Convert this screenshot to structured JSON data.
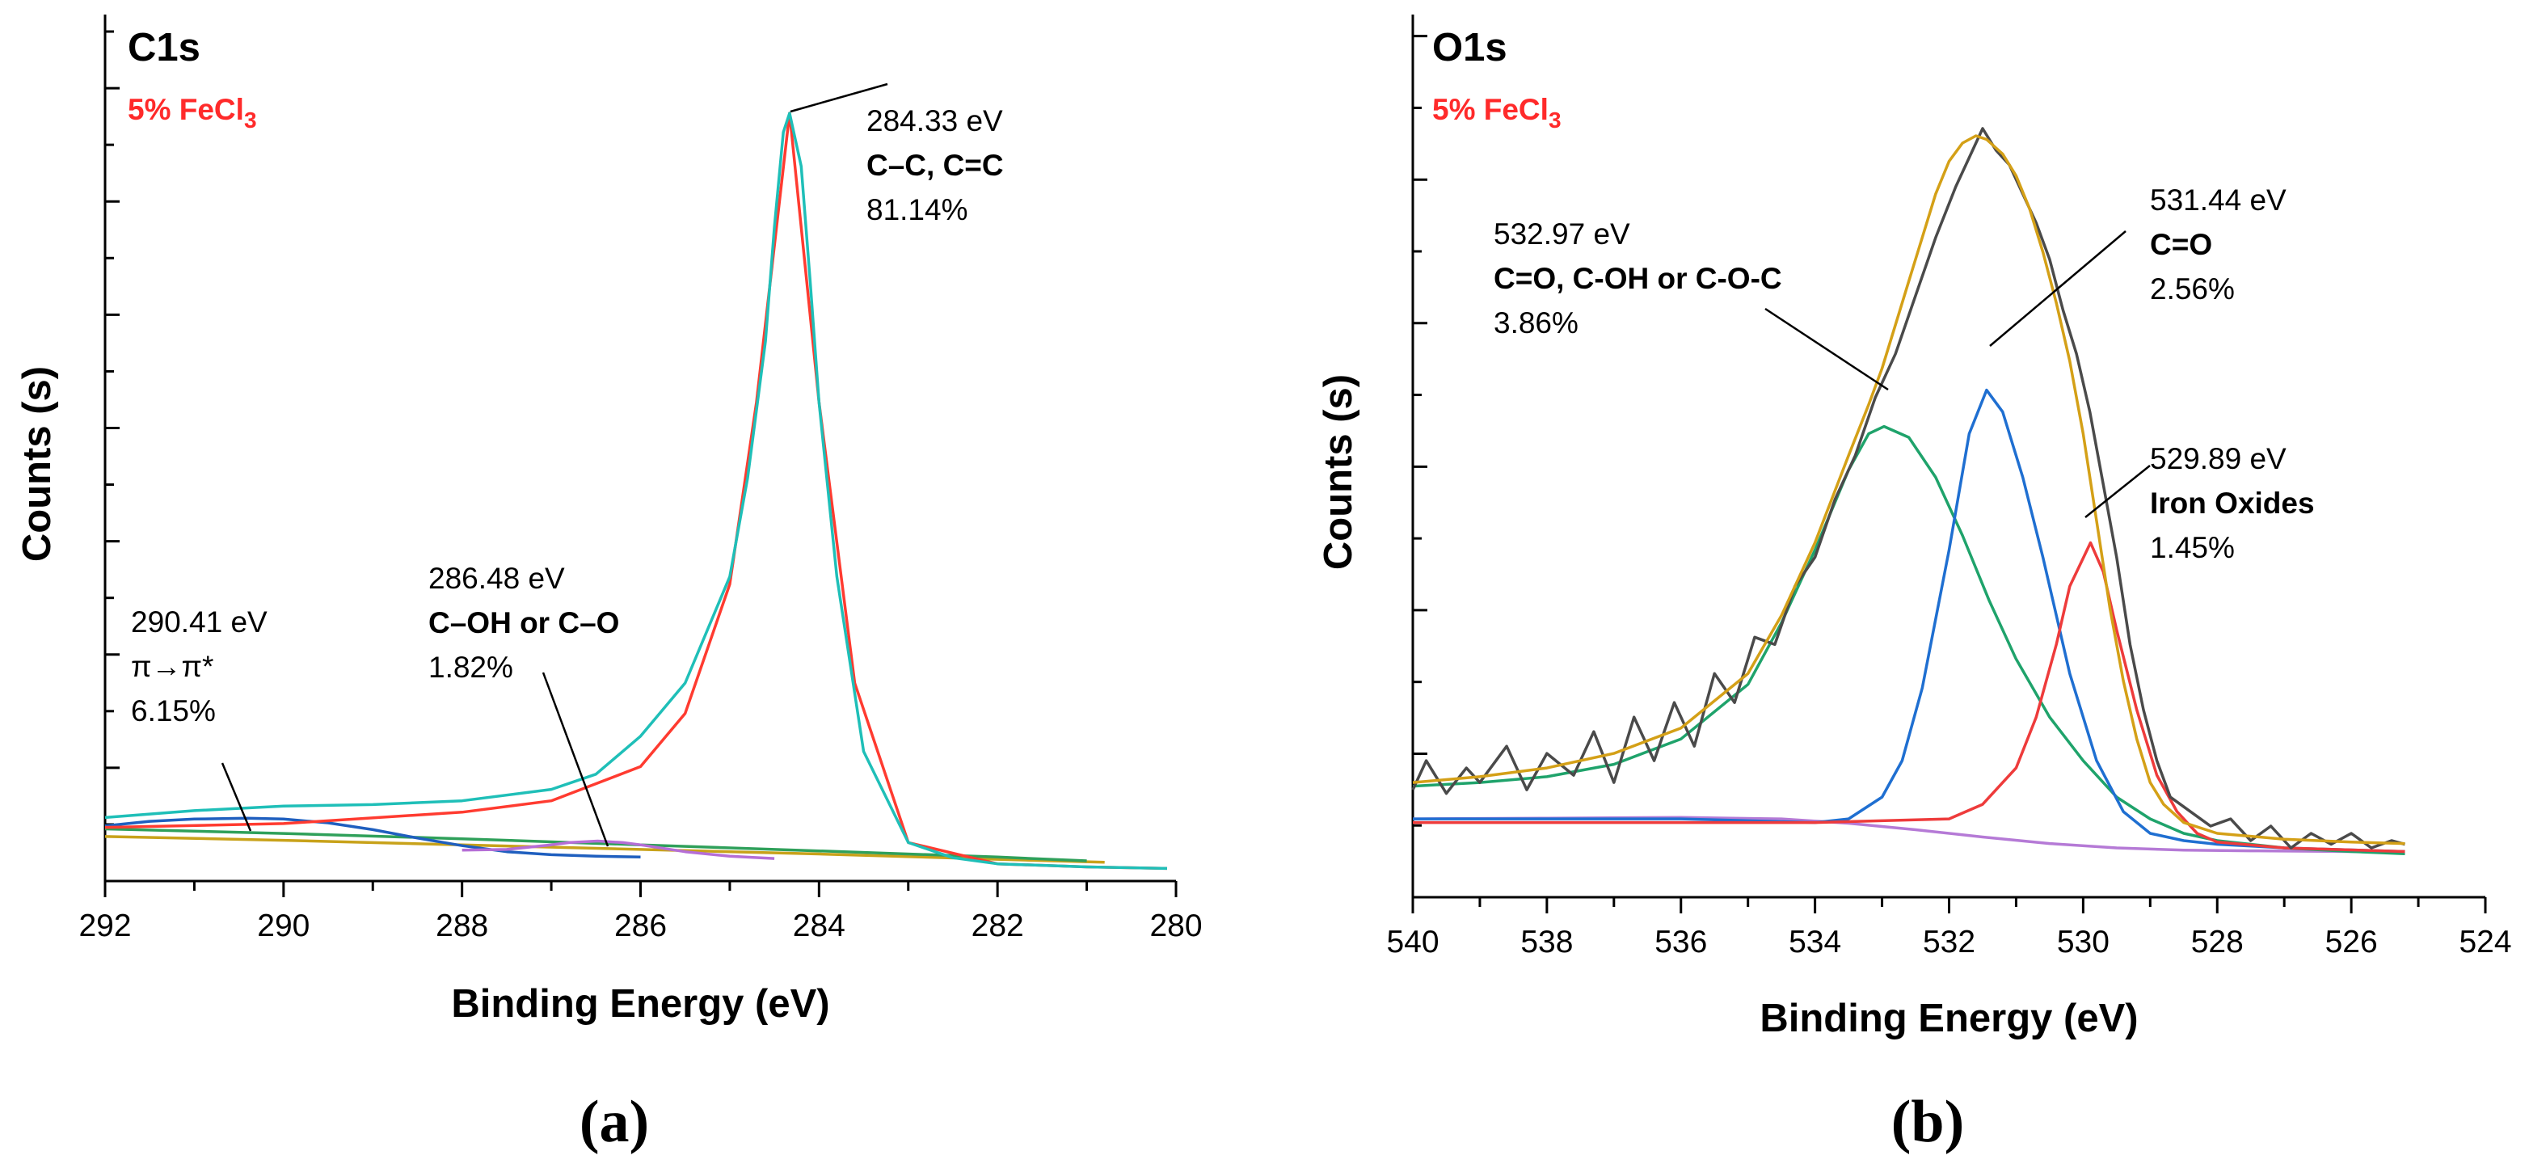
{
  "chart_data": [
    {
      "type": "line",
      "panel_label": "(a)",
      "title": "C1s",
      "subtitle": "5% FeCl",
      "subtitle_sub": "3",
      "xlabel": "Binding Energy (eV)",
      "ylabel": "Counts (s)",
      "xlim": [
        292,
        280
      ],
      "x_reversed": true,
      "xticks": [
        "292",
        "290",
        "288",
        "286",
        "284",
        "282",
        "280"
      ],
      "y_tick_labels": false,
      "colors": {
        "measured": "#1fbfb8",
        "envelope": "#1fbfb8",
        "peak_cc": "#ff3b30",
        "peak_pi": "#1f5fbf",
        "peak_coh": "#b56ed6",
        "background": "#c8a21a",
        "background2": "#2fa05a"
      },
      "series": [
        {
          "role": "measured",
          "x": [
            292,
            291,
            290,
            289,
            288,
            287,
            286.5,
            286,
            285.5,
            285,
            284.8,
            284.6,
            284.5,
            284.4,
            284.33,
            284.2,
            284.1,
            284,
            283.8,
            283.5,
            283,
            282.5,
            282,
            281,
            280.1
          ],
          "y": [
            0.073,
            0.082,
            0.088,
            0.09,
            0.095,
            0.11,
            0.13,
            0.18,
            0.25,
            0.39,
            0.52,
            0.7,
            0.85,
            0.975,
            1.0,
            0.93,
            0.78,
            0.62,
            0.39,
            0.16,
            0.04,
            0.02,
            0.012,
            0.008,
            0.006
          ]
        },
        {
          "role": "peak_cc",
          "x": [
            292,
            290,
            288,
            287,
            286,
            285.5,
            285,
            284.7,
            284.33,
            284,
            283.6,
            283,
            282,
            281,
            280.1
          ],
          "y": [
            0.06,
            0.065,
            0.08,
            0.095,
            0.14,
            0.21,
            0.38,
            0.62,
            1.0,
            0.62,
            0.25,
            0.04,
            0.012,
            0.008,
            0.006
          ]
        },
        {
          "role": "peak_pi",
          "x": [
            292,
            291.5,
            291,
            290.41,
            290,
            289.5,
            289,
            288.5,
            288,
            287.5,
            287,
            286.5,
            286
          ],
          "y": [
            0.062,
            0.068,
            0.071,
            0.072,
            0.071,
            0.066,
            0.057,
            0.046,
            0.036,
            0.028,
            0.024,
            0.022,
            0.021
          ]
        },
        {
          "role": "peak_coh",
          "x": [
            288,
            287.5,
            287,
            286.8,
            286.48,
            286.2,
            286,
            285.5,
            285,
            284.5
          ],
          "y": [
            0.03,
            0.031,
            0.037,
            0.04,
            0.042,
            0.04,
            0.037,
            0.028,
            0.022,
            0.019
          ]
        },
        {
          "role": "background",
          "x": [
            292,
            290,
            288,
            286,
            284,
            282,
            280.8
          ],
          "y": [
            0.048,
            0.043,
            0.037,
            0.031,
            0.025,
            0.018,
            0.014
          ]
        },
        {
          "role": "background2",
          "x": [
            292,
            290,
            288,
            286,
            284,
            282,
            281
          ],
          "y": [
            0.058,
            0.052,
            0.045,
            0.037,
            0.029,
            0.021,
            0.016
          ]
        }
      ],
      "annotations": [
        {
          "x": 284.33,
          "y": 1.0,
          "lines": [
            "284.33 eV",
            "C–C, C=C",
            "81.14%"
          ],
          "bold": [
            false,
            true,
            false
          ]
        },
        {
          "x": 286.48,
          "y": 0.042,
          "lines": [
            "286.48 eV",
            "C–OH or C–O",
            "1.82%"
          ],
          "bold": [
            false,
            true,
            false
          ]
        },
        {
          "x": 290.41,
          "y": 0.072,
          "lines": [
            "290.41 eV",
            "π→π*",
            "6.15%"
          ],
          "bold": [
            false,
            false,
            false
          ]
        }
      ]
    },
    {
      "type": "line",
      "panel_label": "(b)",
      "title": "O1s",
      "subtitle": "5% FeCl",
      "subtitle_sub": "3",
      "xlabel": "Binding Energy (eV)",
      "ylabel": "Counts (s)",
      "xlim": [
        540,
        524
      ],
      "x_reversed": true,
      "xticks": [
        "540",
        "538",
        "536",
        "534",
        "532",
        "530",
        "528",
        "526",
        "524"
      ],
      "y_tick_labels": false,
      "colors": {
        "measured": "#4a4a4a",
        "envelope": "#d4a017",
        "peak_coc": "#1fa36b",
        "peak_co": "#1f6fd1",
        "peak_fe": "#ee3b3b",
        "background": "#b57ad6"
      },
      "series": [
        {
          "role": "peak_coc",
          "x": [
            540,
            539,
            538,
            537,
            536,
            535,
            534.5,
            534,
            533.5,
            533.2,
            532.97,
            532.6,
            532.2,
            531.8,
            531.4,
            531,
            530.5,
            530,
            529.5,
            529,
            528.5,
            528,
            527,
            526,
            525.2
          ],
          "y": [
            0.105,
            0.11,
            0.118,
            0.135,
            0.17,
            0.245,
            0.33,
            0.43,
            0.54,
            0.59,
            0.6,
            0.585,
            0.53,
            0.45,
            0.36,
            0.28,
            0.2,
            0.14,
            0.09,
            0.06,
            0.04,
            0.03,
            0.02,
            0.015,
            0.012
          ]
        },
        {
          "role": "peak_co",
          "x": [
            540,
            536,
            534,
            533.5,
            533,
            532.7,
            532.4,
            532,
            531.7,
            531.44,
            531.2,
            530.9,
            530.6,
            530.2,
            529.8,
            529.4,
            529,
            528.5,
            528,
            527,
            525.2
          ],
          "y": [
            0.06,
            0.06,
            0.055,
            0.06,
            0.09,
            0.14,
            0.24,
            0.43,
            0.59,
            0.65,
            0.62,
            0.53,
            0.42,
            0.26,
            0.14,
            0.07,
            0.04,
            0.03,
            0.025,
            0.02,
            0.015
          ]
        },
        {
          "role": "peak_fe",
          "x": [
            540,
            534,
            532,
            531.5,
            531,
            530.7,
            530.4,
            530.2,
            529.89,
            529.7,
            529.5,
            529.2,
            528.9,
            528.6,
            528.3,
            528,
            527,
            525.2
          ],
          "y": [
            0.055,
            0.055,
            0.06,
            0.08,
            0.13,
            0.2,
            0.3,
            0.38,
            0.44,
            0.4,
            0.32,
            0.21,
            0.12,
            0.07,
            0.04,
            0.028,
            0.02,
            0.015
          ]
        },
        {
          "role": "background",
          "x": [
            540,
            538,
            536,
            534.5,
            533.5,
            532.5,
            531.5,
            530.5,
            529.5,
            528.5,
            527.5,
            526,
            525.2
          ],
          "y": [
            0.06,
            0.061,
            0.062,
            0.06,
            0.054,
            0.045,
            0.035,
            0.026,
            0.02,
            0.017,
            0.016,
            0.015,
            0.015
          ]
        },
        {
          "role": "envelope",
          "x": [
            540,
            539,
            538,
            537,
            536,
            535,
            534.5,
            534,
            533.5,
            533.2,
            533,
            532.8,
            532.6,
            532.4,
            532.2,
            532,
            531.8,
            531.6,
            531.44,
            531.2,
            531,
            530.8,
            530.6,
            530.4,
            530.2,
            530,
            529.8,
            529.6,
            529.4,
            529.2,
            529,
            528.8,
            528.5,
            528,
            527,
            526,
            525.2
          ],
          "y": [
            0.11,
            0.118,
            0.13,
            0.15,
            0.185,
            0.26,
            0.34,
            0.44,
            0.56,
            0.63,
            0.68,
            0.74,
            0.8,
            0.86,
            0.92,
            0.965,
            0.99,
            1.0,
            0.995,
            0.975,
            0.945,
            0.9,
            0.84,
            0.77,
            0.69,
            0.59,
            0.47,
            0.35,
            0.25,
            0.17,
            0.11,
            0.08,
            0.055,
            0.04,
            0.032,
            0.028,
            0.026
          ]
        },
        {
          "role": "measured",
          "x": [
            540,
            539.8,
            539.5,
            539.2,
            539,
            538.6,
            538.3,
            538,
            537.6,
            537.3,
            537,
            536.7,
            536.4,
            536.1,
            535.8,
            535.5,
            535.2,
            534.9,
            534.6,
            534.3,
            534,
            533.7,
            533.4,
            533.1,
            532.8,
            532.5,
            532.2,
            531.9,
            531.7,
            531.5,
            531.3,
            531.1,
            530.9,
            530.7,
            530.5,
            530.3,
            530.1,
            529.9,
            529.7,
            529.5,
            529.3,
            529.1,
            528.9,
            528.7,
            528.4,
            528.1,
            527.8,
            527.5,
            527.2,
            526.9,
            526.6,
            526.3,
            526,
            525.7,
            525.4,
            525.2
          ],
          "y": [
            0.1,
            0.14,
            0.095,
            0.13,
            0.11,
            0.16,
            0.1,
            0.15,
            0.12,
            0.18,
            0.11,
            0.2,
            0.14,
            0.22,
            0.16,
            0.26,
            0.22,
            0.31,
            0.3,
            0.38,
            0.42,
            0.5,
            0.56,
            0.64,
            0.7,
            0.78,
            0.86,
            0.93,
            0.97,
            1.01,
            0.98,
            0.96,
            0.92,
            0.88,
            0.83,
            0.76,
            0.7,
            0.62,
            0.52,
            0.42,
            0.3,
            0.21,
            0.14,
            0.09,
            0.07,
            0.05,
            0.06,
            0.03,
            0.05,
            0.02,
            0.04,
            0.025,
            0.04,
            0.02,
            0.03,
            0.025
          ]
        }
      ],
      "annotations": [
        {
          "x": 532.97,
          "y": 0.6,
          "lines": [
            "532.97 eV",
            "C=O, C-OH or C-O-C",
            "3.86%"
          ],
          "bold": [
            false,
            true,
            false
          ]
        },
        {
          "x": 531.44,
          "y": 0.65,
          "lines": [
            "531.44 eV",
            "C=O",
            "2.56%"
          ],
          "bold": [
            false,
            true,
            false
          ]
        },
        {
          "x": 529.89,
          "y": 0.44,
          "lines": [
            "529.89 eV",
            "Iron Oxides",
            "1.45%"
          ],
          "bold": [
            false,
            true,
            false
          ]
        }
      ]
    }
  ]
}
